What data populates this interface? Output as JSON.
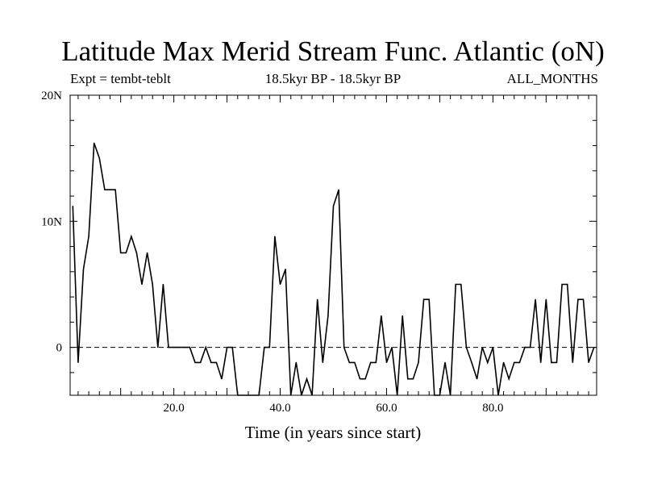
{
  "chart_data": {
    "type": "line",
    "title": "Latitude Max Merid Stream Func. Atlantic (oN)",
    "subtitle_left": "Expt = tembt-teblt",
    "subtitle_center": "18.5kyr BP - 18.5kyr BP",
    "subtitle_right": "ALL_MONTHS",
    "xlabel": "Time (in years since start)",
    "ylabel": "",
    "xlim": [
      0.5,
      99.5
    ],
    "ylim": [
      -3.8,
      20
    ],
    "x_ticks": [
      20,
      40,
      60,
      80
    ],
    "x_tick_labels": [
      "20.0",
      "40.0",
      "60.0",
      "80.0"
    ],
    "y_ticks": [
      0,
      10,
      20
    ],
    "y_tick_labels": [
      "0",
      "10N",
      "20N"
    ],
    "zero_line": "dashed",
    "grid": false,
    "series": [
      {
        "x": [
          1,
          2,
          3,
          4,
          5,
          6,
          7,
          8,
          9,
          10,
          11,
          12,
          13,
          14,
          15,
          16,
          17,
          18,
          19,
          20,
          21,
          22,
          23,
          24,
          25,
          26,
          27,
          28,
          29,
          30,
          31,
          32,
          33,
          34,
          35,
          36,
          37,
          38,
          39,
          40,
          41,
          42,
          43,
          44,
          45,
          46,
          47,
          48,
          49,
          50,
          51,
          52,
          53,
          54,
          55,
          56,
          57,
          58,
          59,
          60,
          61,
          62,
          63,
          64,
          65,
          66,
          67,
          68,
          69,
          70,
          71,
          72,
          73,
          74,
          75,
          76,
          77,
          78,
          79,
          80,
          81,
          82,
          83,
          84,
          85,
          86,
          87,
          88,
          89,
          90,
          91,
          92,
          93,
          94,
          95,
          96,
          97,
          98,
          99
        ],
        "values": [
          11.2,
          -1.2,
          6.2,
          8.8,
          16.2,
          15,
          12.5,
          12.5,
          12.5,
          7.5,
          7.5,
          8.8,
          7.5,
          5,
          7.5,
          5,
          0,
          5,
          0,
          0,
          0,
          0,
          0,
          -1.2,
          -1.2,
          0,
          -1.2,
          -1.2,
          -2.5,
          0,
          0,
          -3.8,
          -3.8,
          -3.8,
          -3.8,
          -3.8,
          0,
          0,
          8.8,
          5,
          6.2,
          -3.8,
          -1.2,
          -3.8,
          -2.5,
          -3.8,
          3.8,
          -1.2,
          2.5,
          11.2,
          12.5,
          0,
          -1.2,
          -1.2,
          -2.5,
          -2.5,
          -1.2,
          -1.2,
          2.5,
          -1.2,
          0,
          -3.8,
          2.5,
          -2.5,
          -2.5,
          -1.2,
          3.8,
          3.8,
          -3.8,
          -3.8,
          -1.2,
          -3.8,
          5,
          5,
          0,
          -1.2,
          -2.5,
          0,
          -1.2,
          0,
          -3.8,
          -1.2,
          -2.5,
          -1.2,
          -1.2,
          0,
          0,
          3.8,
          -1.2,
          3.8,
          -1.2,
          -1.2,
          5,
          5,
          -1.2,
          3.8,
          3.8,
          -1.2,
          0
        ]
      }
    ]
  }
}
